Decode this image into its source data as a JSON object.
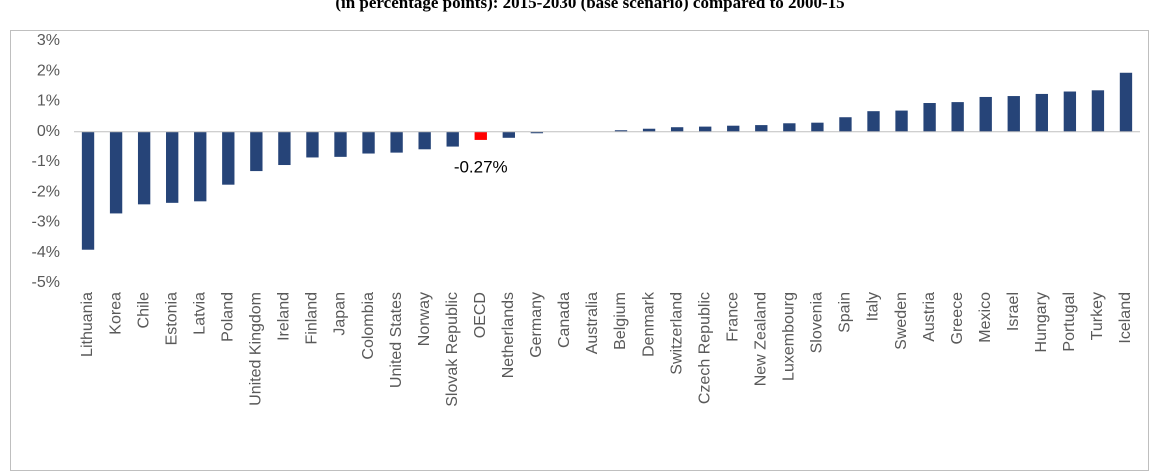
{
  "chart_data": {
    "type": "bar",
    "title": "(in percentage points): 2015-2030 (base scenario) compared to 2000-15",
    "categories": [
      "Lithuania",
      "Korea",
      "Chile",
      "Estonia",
      "Latvia",
      "Poland",
      "United Kingdom",
      "Ireland",
      "Finland",
      "Japan",
      "Colombia",
      "United States",
      "Norway",
      "Slovak Republic",
      "OECD",
      "Netherlands",
      "Germany",
      "Canada",
      "Australia",
      "Belgium",
      "Denmark",
      "Switzerland",
      "Czech Republic",
      "France",
      "New Zealand",
      "Luxembourg",
      "Slovenia",
      "Spain",
      "Italy",
      "Sweden",
      "Austria",
      "Greece",
      "Mexico",
      "Israel",
      "Hungary",
      "Portugal",
      "Turkey",
      "Iceland"
    ],
    "values": [
      -3.9,
      -2.7,
      -2.4,
      -2.35,
      -2.3,
      -1.75,
      -1.3,
      -1.1,
      -0.85,
      -0.83,
      -0.72,
      -0.69,
      -0.58,
      -0.49,
      -0.27,
      -0.2,
      -0.05,
      0,
      0,
      0.05,
      0.1,
      0.15,
      0.17,
      0.2,
      0.22,
      0.28,
      0.3,
      0.48,
      0.68,
      0.7,
      0.95,
      0.98,
      1.15,
      1.18,
      1.25,
      1.33,
      1.37,
      1.95
    ],
    "value_labels": [
      null,
      null,
      null,
      null,
      null,
      null,
      null,
      null,
      null,
      null,
      null,
      null,
      null,
      null,
      "-0.27%",
      null,
      null,
      null,
      null,
      null,
      null,
      null,
      null,
      null,
      null,
      null,
      null,
      null,
      null,
      null,
      null,
      null,
      null,
      null,
      null,
      null,
      null,
      null
    ],
    "colors": [
      "#264478",
      "#264478",
      "#264478",
      "#264478",
      "#264478",
      "#264478",
      "#264478",
      "#264478",
      "#264478",
      "#264478",
      "#264478",
      "#264478",
      "#264478",
      "#264478",
      "#ff0000",
      "#264478",
      "#264478",
      "#264478",
      "#264478",
      "#264478",
      "#264478",
      "#264478",
      "#264478",
      "#264478",
      "#264478",
      "#264478",
      "#264478",
      "#264478",
      "#264478",
      "#264478",
      "#264478",
      "#264478",
      "#264478",
      "#264478",
      "#264478",
      "#264478",
      "#264478",
      "#264478"
    ],
    "ylim": [
      -5,
      3
    ],
    "yticks": [
      {
        "value": 3,
        "label": "3%"
      },
      {
        "value": 2,
        "label": "2%"
      },
      {
        "value": 1,
        "label": "1%"
      },
      {
        "value": 0,
        "label": "0%"
      },
      {
        "value": -1,
        "label": "-1%"
      },
      {
        "value": -2,
        "label": "-2%"
      },
      {
        "value": -3,
        "label": "-3%"
      },
      {
        "value": -4,
        "label": "-4%"
      },
      {
        "value": -5,
        "label": "-5%"
      }
    ],
    "grid": false
  }
}
